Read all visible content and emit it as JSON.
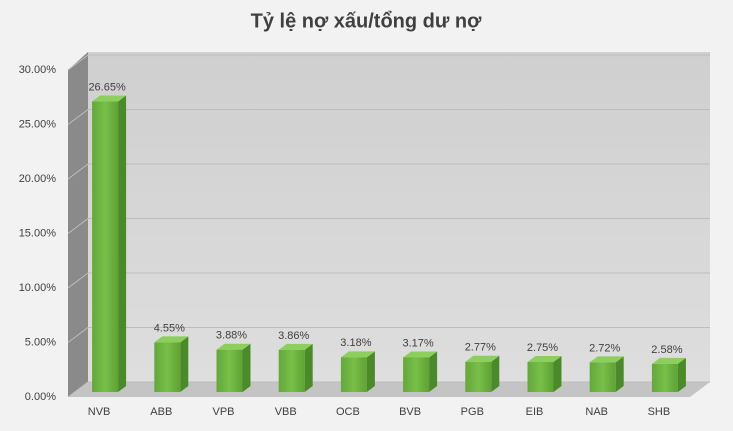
{
  "chart_data": {
    "type": "bar3d",
    "title": "Tỷ lệ nợ xấu/tổng dư nợ",
    "categories": [
      "NVB",
      "ABB",
      "VPB",
      "VBB",
      "OCB",
      "BVB",
      "PGB",
      "EIB",
      "NAB",
      "SHB"
    ],
    "values": [
      26.65,
      4.55,
      3.88,
      3.86,
      3.18,
      3.17,
      2.77,
      2.75,
      2.72,
      2.58
    ],
    "value_labels": [
      "26.65%",
      "4.55%",
      "3.88%",
      "3.86%",
      "3.18%",
      "3.17%",
      "2.77%",
      "2.75%",
      "2.72%",
      "2.58%"
    ],
    "color": "#6aae3c",
    "ylim": [
      0,
      30
    ],
    "yticks": [
      {
        "value": 0,
        "label": "0.00%"
      },
      {
        "value": 5,
        "label": "5.00%"
      },
      {
        "value": 10,
        "label": "10.00%"
      },
      {
        "value": 15,
        "label": "15.00%"
      },
      {
        "value": 20,
        "label": "20.00%"
      },
      {
        "value": 25,
        "label": "25.00%"
      },
      {
        "value": 30,
        "label": "30.00%"
      }
    ],
    "grid": true
  }
}
